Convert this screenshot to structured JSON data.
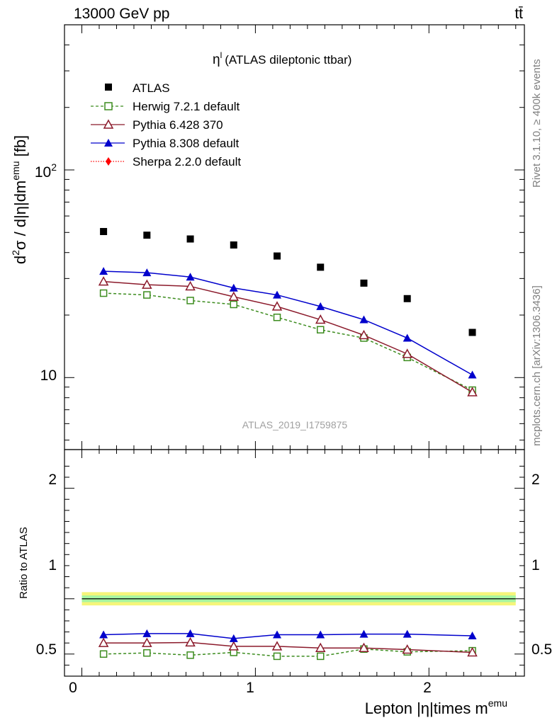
{
  "header": {
    "beam": "13000 GeV pp",
    "process": "tt̄"
  },
  "side_labels": {
    "rivet": "Rivet 3.1.10, ≥ 400k events",
    "mcplots": "mcplots.cern.ch [arXiv:1306.3436]"
  },
  "watermark": "ATLAS_2019_I1759875",
  "chart_data": [
    {
      "type": "scatter",
      "title": "η^l (ATLAS dileptonic ttbar)",
      "title_main": "η",
      "title_sup": "l",
      "title_rest": "(ATLAS dileptonic ttbar)",
      "ylabel": "d²σ / d|η|dm^emu [fb]",
      "ylabel_parts": {
        "d": "d",
        "d_sup": "2",
        "mid": "σ / d|η|dm",
        "emu_sup": "emu",
        "end": " [fb]"
      },
      "yscale": "log",
      "ylim": [
        4.5,
        500
      ],
      "xlim": [
        -0.1,
        2.55
      ],
      "yticks": [
        {
          "value": 100,
          "base": "10",
          "exp": "2"
        },
        {
          "value": 10,
          "base": "10",
          "exp": ""
        }
      ],
      "legend_placement": "top-left",
      "x": [
        0.125,
        0.375,
        0.625,
        0.875,
        1.125,
        1.375,
        1.625,
        1.875,
        2.25
      ],
      "series": [
        {
          "name": "ATLAS",
          "color": "#000000",
          "marker": "filled-square",
          "line": "none",
          "values": [
            50.5,
            48.5,
            46.5,
            43.5,
            38.5,
            34,
            28.5,
            24,
            16.5
          ]
        },
        {
          "name": "Herwig 7.2.1 default",
          "color": "#3c8c1e",
          "marker": "open-square",
          "line": "dashed",
          "values": [
            25.5,
            25,
            23.5,
            22.5,
            19.5,
            17,
            15.5,
            12.5,
            8.7
          ]
        },
        {
          "name": "Pythia 6.428 370",
          "color": "#8b1a2b",
          "marker": "open-triangle",
          "line": "solid",
          "values": [
            29,
            28,
            27.5,
            24.5,
            22,
            19,
            16,
            13,
            8.5
          ]
        },
        {
          "name": "Pythia 8.308 default",
          "color": "#0000cc",
          "marker": "filled-triangle",
          "line": "solid",
          "values": [
            32.5,
            32,
            30.5,
            27,
            25,
            22,
            19,
            15.5,
            10.3
          ]
        },
        {
          "name": "Sherpa 2.2.0 default",
          "color": "#ff0000",
          "marker": "filled-diamond",
          "line": "dotted",
          "values": []
        }
      ]
    },
    {
      "type": "scatter",
      "ylabel": "Ratio to ATLAS",
      "xlabel": "Lepton |η|times m^emu",
      "xlabel_main": "Lepton |η|times m",
      "xlabel_sup": "emu",
      "ylim": [
        0.3,
        2.35
      ],
      "xlim": [
        -0.1,
        2.55
      ],
      "yticks": [
        0.5,
        1,
        2
      ],
      "ytick_labels": [
        "0.5",
        "1",
        "2"
      ],
      "xticks": [
        0,
        1,
        2
      ],
      "xtick_labels": [
        "0",
        "1",
        "2"
      ],
      "band": {
        "inner": [
          0.97,
          1.03
        ],
        "outer": [
          0.94,
          1.06
        ],
        "x_range": [
          0,
          2.5
        ]
      },
      "x": [
        0.125,
        0.375,
        0.625,
        0.875,
        1.125,
        1.375,
        1.625,
        1.875,
        2.25
      ],
      "series": [
        {
          "name": "Herwig 7.2.1 default",
          "color": "#3c8c1e",
          "marker": "open-square",
          "line": "dashed",
          "values": [
            0.5,
            0.51,
            0.49,
            0.515,
            0.48,
            0.48,
            0.545,
            0.52,
            0.53
          ]
        },
        {
          "name": "Pythia 6.428 370",
          "color": "#8b1a2b",
          "marker": "open-triangle",
          "line": "solid",
          "values": [
            0.6,
            0.6,
            0.605,
            0.57,
            0.57,
            0.555,
            0.555,
            0.54,
            0.515
          ]
        },
        {
          "name": "Pythia 8.308 default",
          "color": "#0000cc",
          "marker": "filled-triangle",
          "line": "solid",
          "values": [
            0.675,
            0.685,
            0.685,
            0.64,
            0.675,
            0.675,
            0.68,
            0.68,
            0.665
          ]
        }
      ]
    }
  ]
}
